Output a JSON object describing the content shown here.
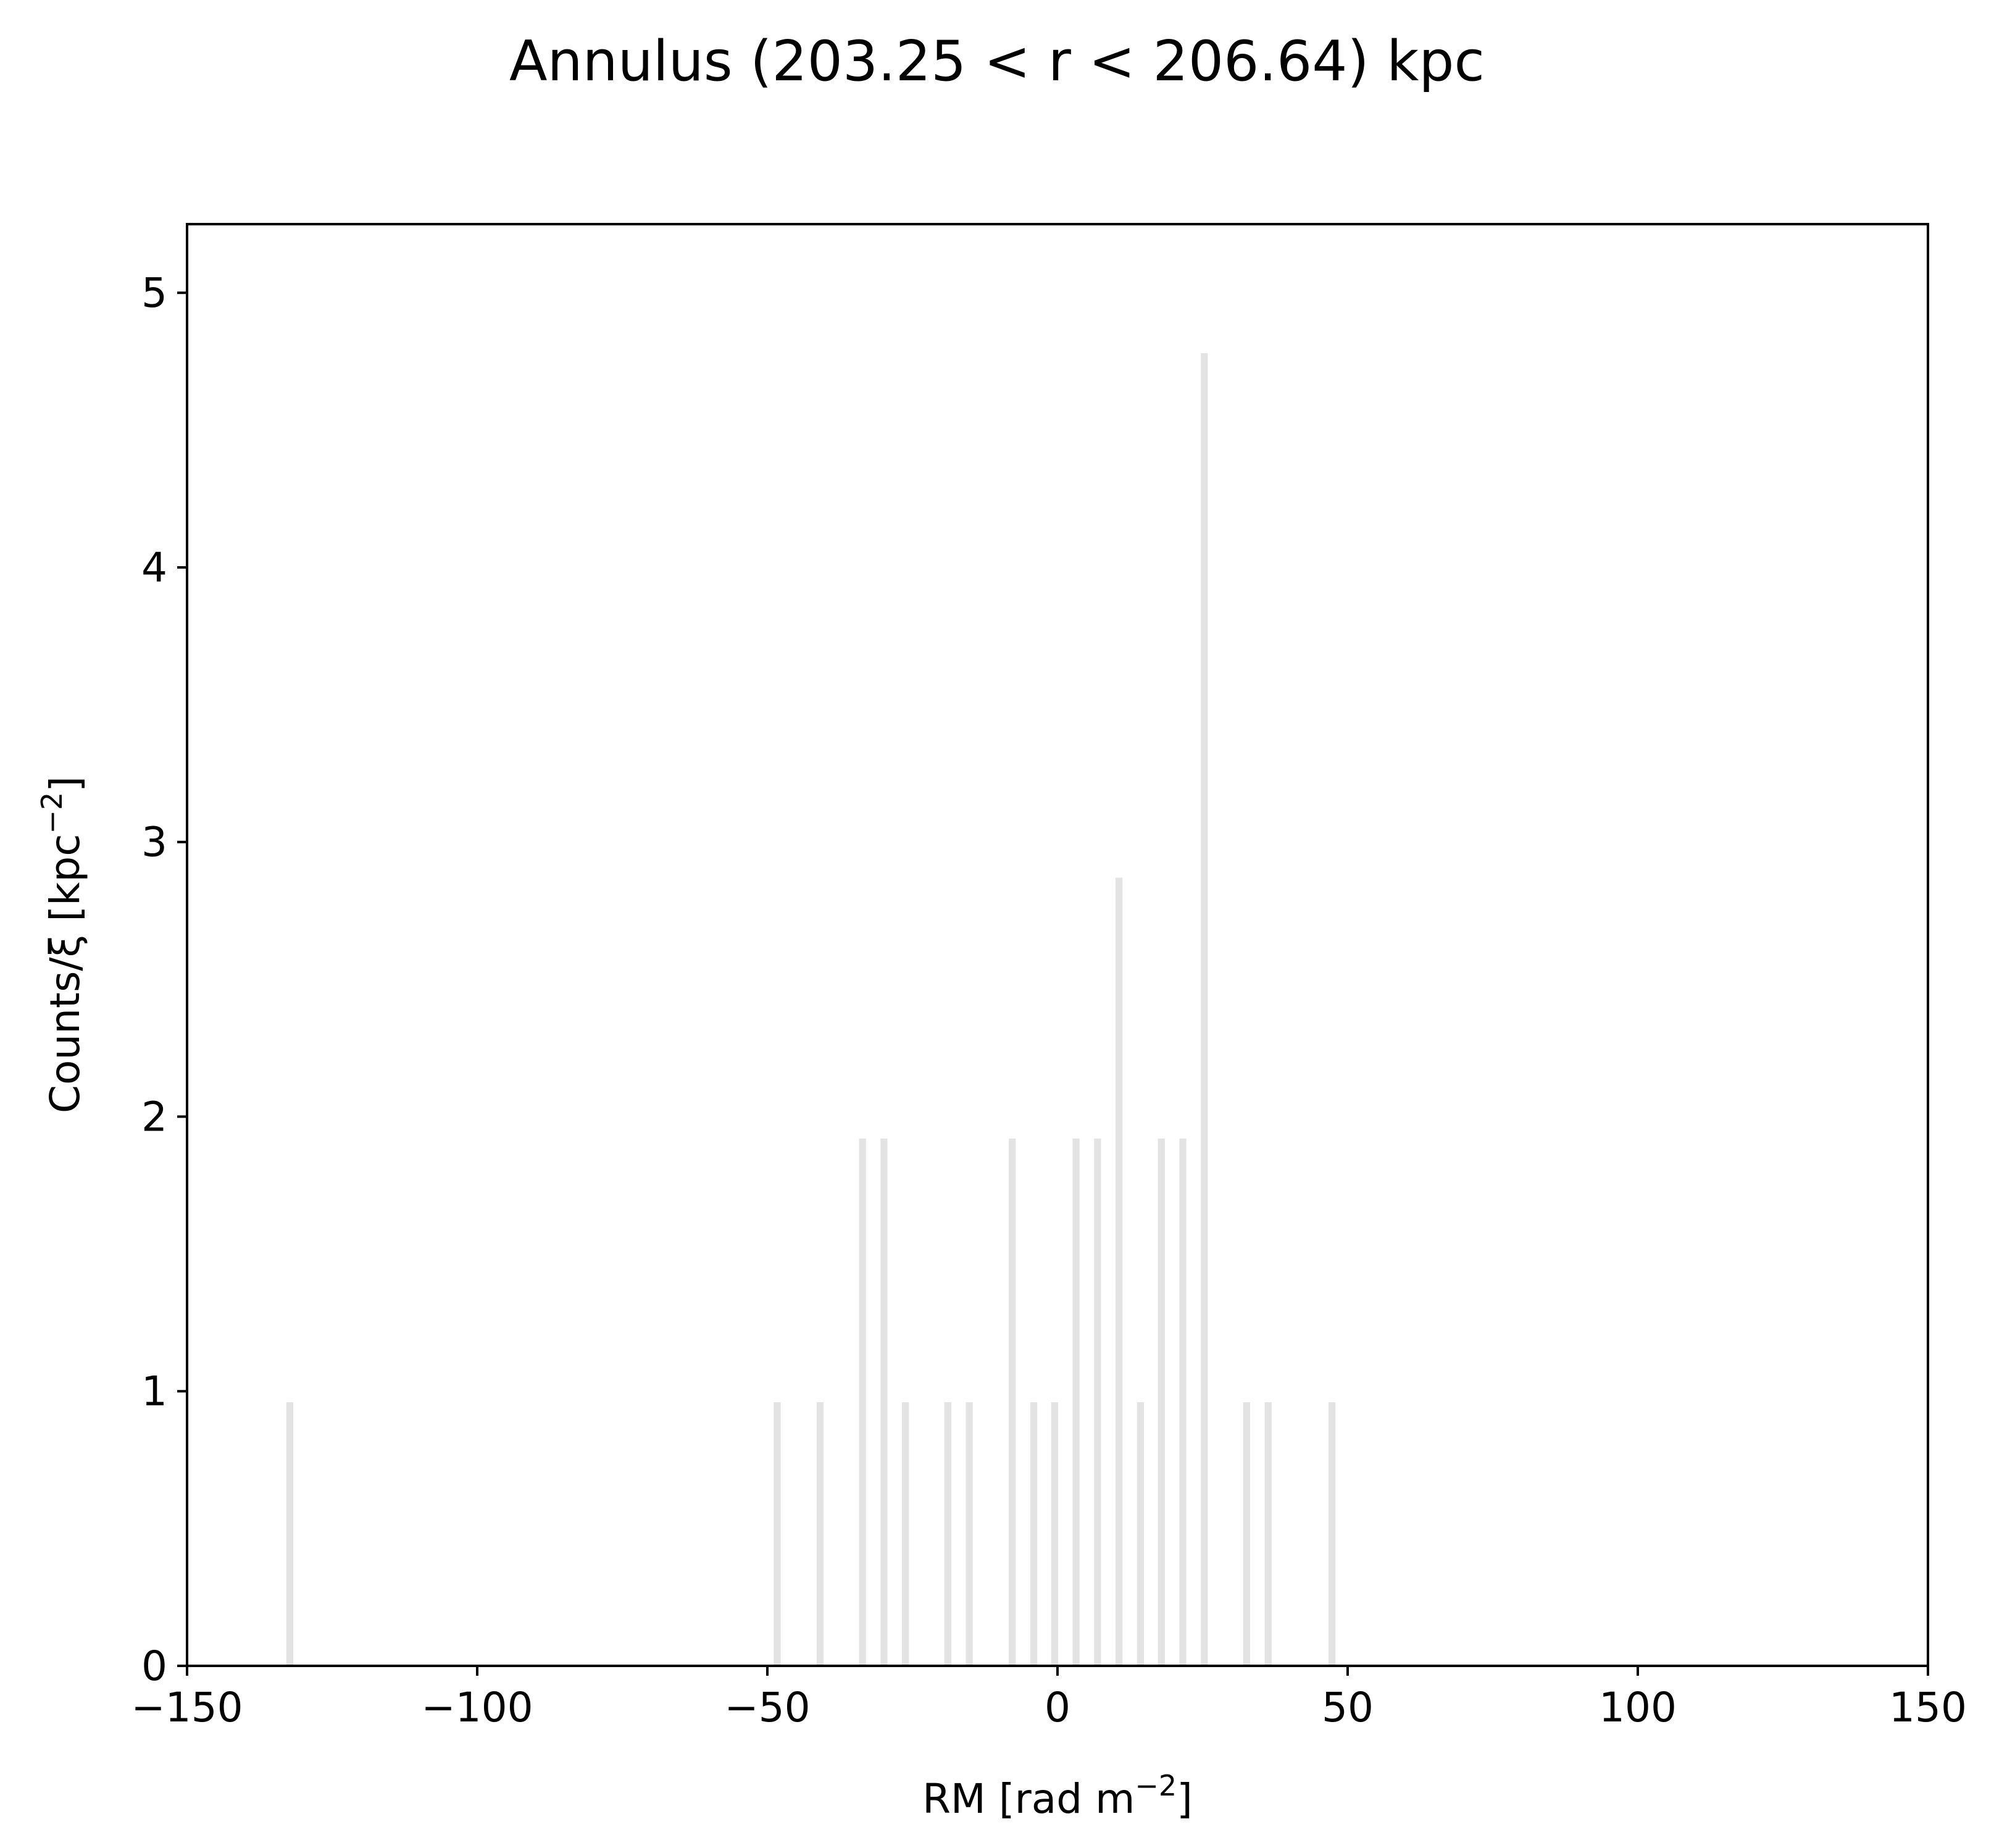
{
  "chart_data": {
    "type": "bar",
    "title": "Annulus (203.25 < r < 206.64) kpc",
    "xlabel": "RM [rad m",
    "xlabel_exp": "−2",
    "xlabel_close": "]",
    "ylabel": "Counts/ξ [kpc",
    "ylabel_exp": "−2",
    "ylabel_close": "]",
    "xlim": [
      -150,
      150
    ],
    "ylim": [
      0,
      5.25
    ],
    "grid": false,
    "bar_color": "#e3e3e3",
    "bar_width": 1.2,
    "x_ticks": [
      -150,
      -100,
      -50,
      0,
      50,
      100,
      150
    ],
    "x_tick_labels": [
      "−150",
      "−100",
      "−50",
      "0",
      "50",
      "100",
      "150"
    ],
    "y_ticks": [
      0,
      1,
      2,
      3,
      4,
      5
    ],
    "y_tick_labels": [
      "0",
      "1",
      "2",
      "3",
      "4",
      "5"
    ],
    "bars": [
      {
        "x": -132.3,
        "y": 0.96
      },
      {
        "x": -48.3,
        "y": 0.96
      },
      {
        "x": -40.9,
        "y": 0.96
      },
      {
        "x": -33.6,
        "y": 1.92
      },
      {
        "x": -29.9,
        "y": 1.92
      },
      {
        "x": -26.2,
        "y": 0.96
      },
      {
        "x": -18.9,
        "y": 0.96
      },
      {
        "x": -15.2,
        "y": 0.96
      },
      {
        "x": -7.8,
        "y": 1.92
      },
      {
        "x": -4.1,
        "y": 0.96
      },
      {
        "x": -0.5,
        "y": 0.96
      },
      {
        "x": 3.2,
        "y": 1.92
      },
      {
        "x": 6.9,
        "y": 1.92
      },
      {
        "x": 10.6,
        "y": 2.87
      },
      {
        "x": 14.3,
        "y": 0.96
      },
      {
        "x": 17.9,
        "y": 1.92
      },
      {
        "x": 21.6,
        "y": 1.92
      },
      {
        "x": 25.3,
        "y": 4.78
      },
      {
        "x": 32.6,
        "y": 0.96
      },
      {
        "x": 36.3,
        "y": 0.96
      },
      {
        "x": 47.3,
        "y": 0.96
      }
    ]
  }
}
